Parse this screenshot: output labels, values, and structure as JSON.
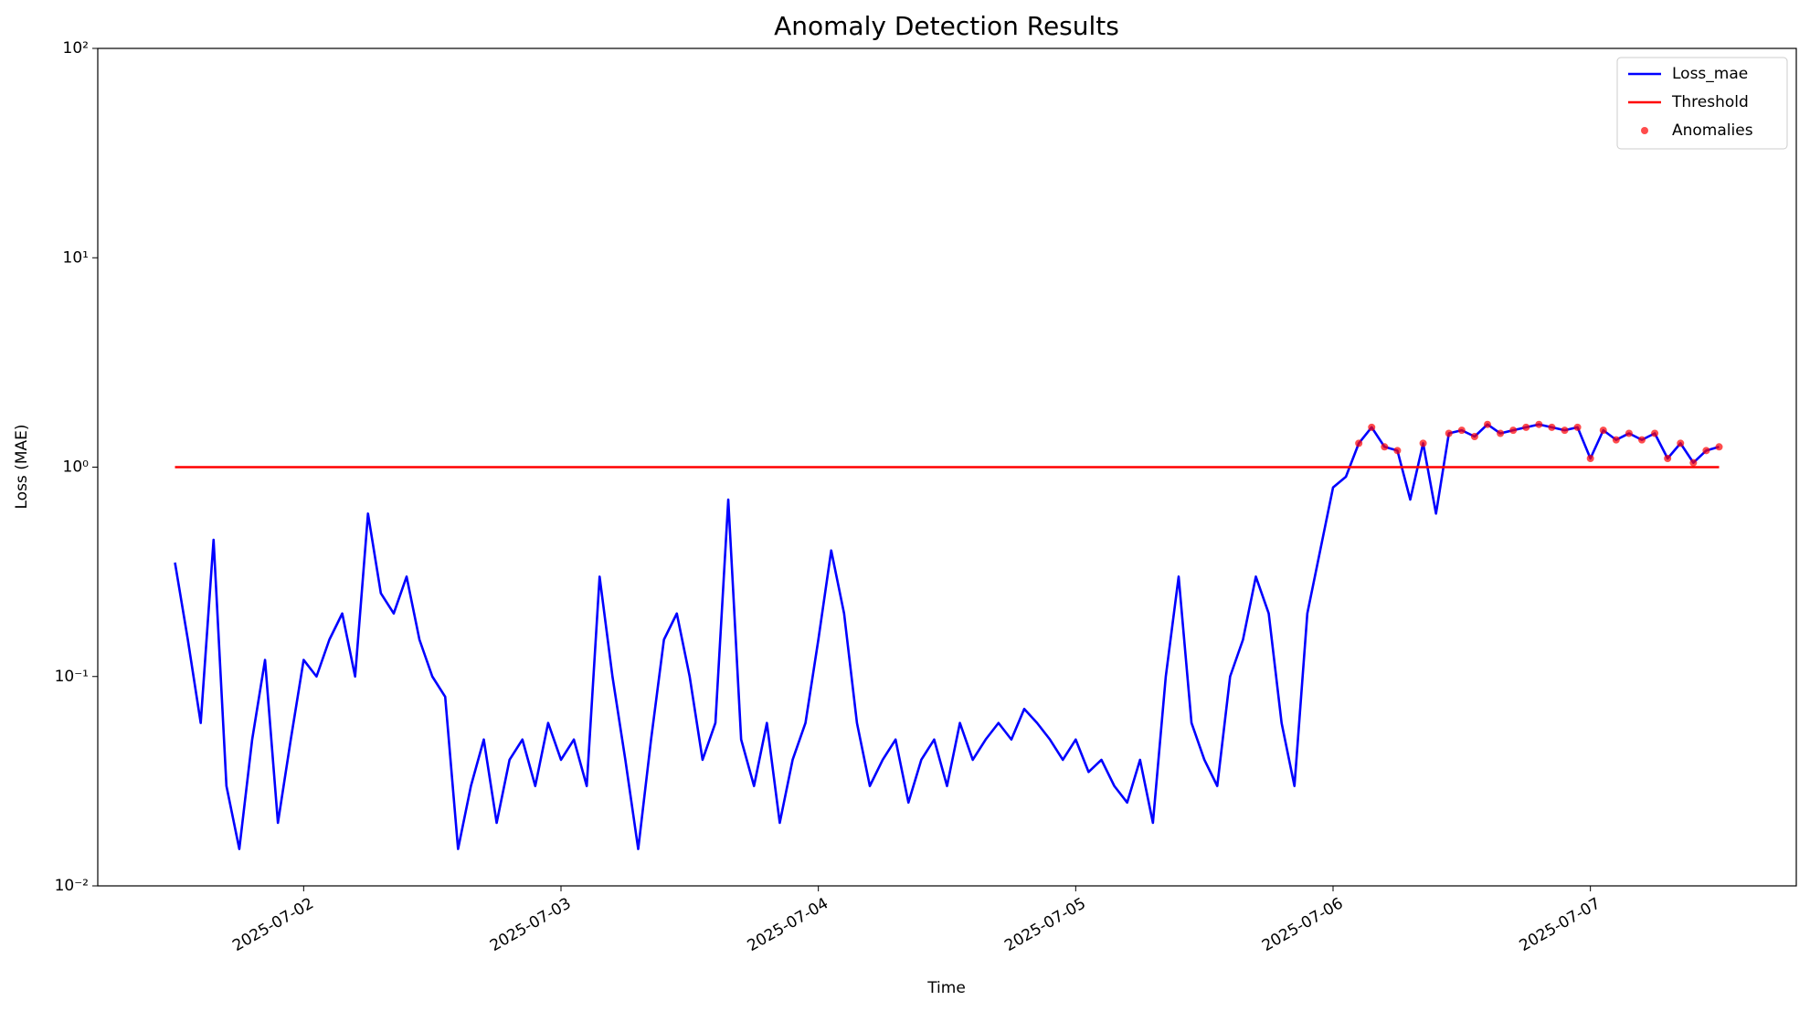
{
  "chart_data": {
    "type": "line",
    "title": "Anomaly Detection Results",
    "xlabel": "Time",
    "ylabel": "Loss (MAE)",
    "yscale": "log",
    "ylim": [
      0.01,
      100
    ],
    "yticks": [
      {
        "value": 0.01,
        "label": "10⁻²"
      },
      {
        "value": 0.1,
        "label": "10⁻¹"
      },
      {
        "value": 1,
        "label": "10⁰"
      },
      {
        "value": 10,
        "label": "10¹"
      },
      {
        "value": 100,
        "label": "10²"
      }
    ],
    "xlim": [
      20270.2,
      20276.8
    ],
    "xticks": [
      {
        "value": 20271,
        "label": "2025-07-02"
      },
      {
        "value": 20272,
        "label": "2025-07-03"
      },
      {
        "value": 20273,
        "label": "2025-07-04"
      },
      {
        "value": 20274,
        "label": "2025-07-05"
      },
      {
        "value": 20275,
        "label": "2025-07-06"
      },
      {
        "value": 20276,
        "label": "2025-07-07"
      }
    ],
    "legend": "upper right",
    "series": [
      {
        "name": "Loss_mae",
        "color": "#0000ff",
        "type": "line",
        "x": [
          20270.5,
          20270.55,
          20270.6,
          20270.65,
          20270.7,
          20270.75,
          20270.8,
          20270.85,
          20270.9,
          20270.95,
          20271,
          20271.05,
          20271.1,
          20271.15,
          20271.2,
          20271.25,
          20271.3,
          20271.35,
          20271.4,
          20271.45,
          20271.5,
          20271.55,
          20271.6,
          20271.65,
          20271.7,
          20271.75,
          20271.8,
          20271.85,
          20271.9,
          20271.95,
          20272,
          20272.05,
          20272.1,
          20272.15,
          20272.2,
          20272.25,
          20272.3,
          20272.35,
          20272.4,
          20272.45,
          20272.5,
          20272.55,
          20272.6,
          20272.65,
          20272.7,
          20272.75,
          20272.8,
          20272.85,
          20272.9,
          20272.95,
          20273,
          20273.05,
          20273.1,
          20273.15,
          20273.2,
          20273.25,
          20273.3,
          20273.35,
          20273.4,
          20273.45,
          20273.5,
          20273.55,
          20273.6,
          20273.65,
          20273.7,
          20273.75,
          20273.8,
          20273.85,
          20273.9,
          20273.95,
          20274,
          20274.05,
          20274.1,
          20274.15,
          20274.2,
          20274.25,
          20274.3,
          20274.35,
          20274.4,
          20274.45,
          20274.5,
          20274.55,
          20274.6,
          20274.65,
          20274.7,
          20274.75,
          20274.8,
          20274.85,
          20274.9,
          20274.95,
          20275,
          20275.05,
          20275.1,
          20275.15,
          20275.2,
          20275.25,
          20275.3,
          20275.35,
          20275.4,
          20275.45,
          20275.5,
          20275.55,
          20275.6,
          20275.65,
          20275.7,
          20275.75,
          20275.8,
          20275.85,
          20275.9,
          20275.95,
          20276,
          20276.05,
          20276.1,
          20276.15,
          20276.2,
          20276.25,
          20276.3,
          20276.35,
          20276.4,
          20276.45,
          20276.5
        ],
        "values": [
          0.35,
          0.15,
          0.06,
          0.45,
          0.03,
          0.015,
          0.05,
          0.12,
          0.02,
          0.05,
          0.12,
          0.1,
          0.15,
          0.2,
          0.1,
          0.6,
          0.25,
          0.2,
          0.3,
          0.15,
          0.1,
          0.08,
          0.015,
          0.03,
          0.05,
          0.02,
          0.04,
          0.05,
          0.03,
          0.06,
          0.04,
          0.05,
          0.03,
          0.3,
          0.1,
          0.04,
          0.015,
          0.05,
          0.15,
          0.2,
          0.1,
          0.04,
          0.06,
          0.7,
          0.05,
          0.03,
          0.06,
          0.02,
          0.04,
          0.06,
          0.15,
          0.4,
          0.2,
          0.06,
          0.03,
          0.04,
          0.05,
          0.025,
          0.04,
          0.05,
          0.03,
          0.06,
          0.04,
          0.05,
          0.06,
          0.05,
          0.07,
          0.06,
          0.05,
          0.04,
          0.05,
          0.035,
          0.04,
          0.03,
          0.025,
          0.04,
          0.02,
          0.1,
          0.3,
          0.06,
          0.04,
          0.03,
          0.1,
          0.15,
          0.3,
          0.2,
          0.06,
          0.03,
          0.2,
          0.4,
          0.8,
          0.9,
          1.3,
          1.55,
          1.25,
          1.2,
          0.7,
          1.3,
          0.6,
          1.45,
          1.5,
          1.4,
          1.6,
          1.45,
          1.5,
          1.55,
          1.6,
          1.55,
          1.5,
          1.55,
          1.1,
          1.5,
          1.35,
          1.45,
          1.35,
          1.45,
          1.1,
          1.3,
          1.05,
          1.2,
          1.25
        ]
      },
      {
        "name": "Threshold",
        "color": "#ff0000",
        "type": "line",
        "x": [
          20270.5,
          20276.5
        ],
        "values": [
          1,
          1
        ]
      },
      {
        "name": "Anomalies",
        "color": "#ff0000",
        "type": "scatter",
        "x": [
          20275.1,
          20275.15,
          20275.2,
          20275.25,
          20275.35,
          20275.45,
          20275.5,
          20275.55,
          20275.6,
          20275.65,
          20275.7,
          20275.75,
          20275.8,
          20275.85,
          20275.9,
          20275.95,
          20276,
          20276.05,
          20276.1,
          20276.15,
          20276.2,
          20276.25,
          20276.3,
          20276.35,
          20276.4,
          20276.45,
          20276.5
        ],
        "values": [
          1.3,
          1.55,
          1.25,
          1.2,
          1.3,
          1.45,
          1.5,
          1.4,
          1.6,
          1.45,
          1.5,
          1.55,
          1.6,
          1.55,
          1.5,
          1.55,
          1.1,
          1.5,
          1.35,
          1.45,
          1.35,
          1.45,
          1.1,
          1.3,
          1.05,
          1.2,
          1.25
        ]
      }
    ]
  }
}
